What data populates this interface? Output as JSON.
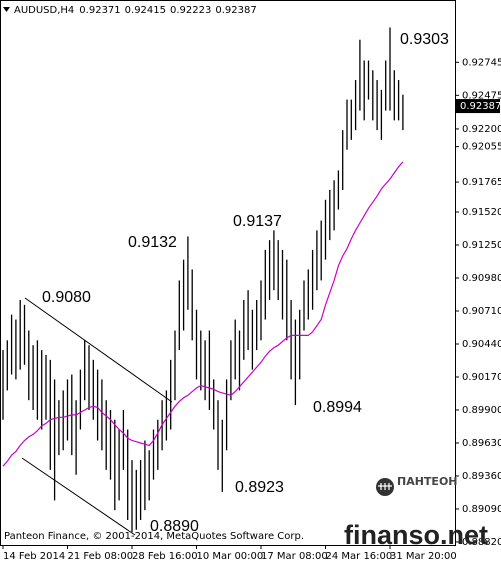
{
  "chart_data": {
    "type": "hilo",
    "title": "AUDUSD,H4",
    "header_prices": [
      0.92371,
      0.92415,
      0.92223,
      0.92387
    ],
    "categories": [
      "14 Feb 2014",
      null,
      null,
      null,
      null,
      null,
      null,
      null,
      null,
      null,
      null,
      null,
      null,
      null,
      null,
      "21 Feb 08:00",
      null,
      null,
      null,
      null,
      null,
      null,
      null,
      null,
      null,
      null,
      null,
      null,
      null,
      null,
      "28 Feb 16:00",
      null,
      null,
      null,
      null,
      null,
      null,
      null,
      null,
      null,
      null,
      null,
      null,
      null,
      null,
      "10 Mar 00:00",
      null,
      null,
      null,
      null,
      null,
      null,
      null,
      null,
      null,
      null,
      null,
      null,
      null,
      null,
      "17 Mar 08:00",
      null,
      null,
      null,
      null,
      null,
      null,
      null,
      null,
      null,
      null,
      null,
      null,
      null,
      null,
      "24 Mar 16:00",
      null,
      null,
      null,
      null,
      null,
      null,
      null,
      null,
      null,
      null,
      null,
      null,
      null,
      null,
      "31 Mar 20:00",
      null,
      null,
      null
    ],
    "high": [
      0.9039,
      0.9047,
      0.9068,
      0.9064,
      0.908,
      0.9076,
      0.9055,
      0.9043,
      0.9047,
      0.9039,
      0.9035,
      0.9031,
      0.9015,
      0.8998,
      0.9006,
      0.9015,
      0.9019,
      0.8998,
      0.9023,
      0.9047,
      0.9043,
      0.9031,
      0.9023,
      0.9015,
      0.8998,
      0.899,
      0.8982,
      0.8974,
      0.899,
      0.8974,
      0.8949,
      0.8941,
      0.8949,
      0.8965,
      0.8957,
      0.8974,
      0.8982,
      0.8998,
      0.9006,
      0.9031,
      0.9055,
      0.9096,
      0.9113,
      0.9132,
      0.9105,
      0.9072,
      0.9055,
      0.9047,
      0.9055,
      0.9015,
      0.8998,
      0.8982,
      0.9015,
      0.9047,
      0.9064,
      0.9055,
      0.908,
      0.9088,
      0.9072,
      0.908,
      0.9096,
      0.9121,
      0.9129,
      0.9137,
      0.9129,
      0.9121,
      0.9113,
      0.908,
      0.9064,
      0.9072,
      0.9096,
      0.9105,
      0.9121,
      0.9137,
      0.9145,
      0.9162,
      0.917,
      0.9178,
      0.9186,
      0.9219,
      0.9244,
      0.9244,
      0.926,
      0.9293,
      0.9276,
      0.9276,
      0.9268,
      0.926,
      0.9252,
      0.9276,
      0.9303,
      0.9268,
      0.926,
      0.9248
    ],
    "low": [
      0.8982,
      0.9006,
      0.9019,
      0.9015,
      0.9023,
      0.9027,
      0.8998,
      0.899,
      0.8982,
      0.8974,
      0.8982,
      0.8941,
      0.8916,
      0.8953,
      0.8957,
      0.8965,
      0.8953,
      0.8937,
      0.8974,
      0.8998,
      0.899,
      0.8982,
      0.8965,
      0.8957,
      0.8941,
      0.8933,
      0.8908,
      0.8916,
      0.8941,
      0.89,
      0.889,
      0.8892,
      0.89,
      0.8908,
      0.8916,
      0.8933,
      0.8941,
      0.8957,
      0.8965,
      0.8974,
      0.8998,
      0.9039,
      0.9055,
      0.9072,
      0.9047,
      0.9015,
      0.9006,
      0.8998,
      0.899,
      0.8974,
      0.8941,
      0.8923,
      0.8957,
      0.8998,
      0.9015,
      0.9006,
      0.9031,
      0.9039,
      0.9023,
      0.9039,
      0.9047,
      0.9064,
      0.908,
      0.9088,
      0.908,
      0.9064,
      0.9047,
      0.9015,
      0.8994,
      0.9015,
      0.9055,
      0.9064,
      0.9072,
      0.9088,
      0.9096,
      0.9113,
      0.9129,
      0.9137,
      0.9154,
      0.917,
      0.9203,
      0.9211,
      0.9219,
      0.9235,
      0.9227,
      0.9244,
      0.9227,
      0.9219,
      0.9211,
      0.9235,
      0.9235,
      0.9227,
      0.9227,
      0.9219
    ],
    "bar_color": "#000000",
    "ma": {
      "color": "#cc00cc",
      "values": [
        0.8944,
        0.8948,
        0.8953,
        0.8956,
        0.8961,
        0.8965,
        0.8968,
        0.897,
        0.8973,
        0.8977,
        0.8979,
        0.8982,
        0.8983,
        0.8984,
        0.8984,
        0.8985,
        0.8986,
        0.8986,
        0.8988,
        0.899,
        0.8992,
        0.8993,
        0.8992,
        0.8988,
        0.8985,
        0.8982,
        0.8978,
        0.8974,
        0.8971,
        0.8967,
        0.8965,
        0.8964,
        0.8963,
        0.8962,
        0.8961,
        0.8965,
        0.8971,
        0.8978,
        0.8983,
        0.8988,
        0.8993,
        0.8997,
        0.9,
        0.9002,
        0.9005,
        0.9008,
        0.901,
        0.9009,
        0.9008,
        0.9007,
        0.9005,
        0.9004,
        0.9003,
        0.9002,
        0.9005,
        0.9009,
        0.9013,
        0.9017,
        0.9021,
        0.9025,
        0.9029,
        0.9034,
        0.9038,
        0.9041,
        0.9043,
        0.9046,
        0.9049,
        0.9051,
        0.9051,
        0.9051,
        0.9051,
        0.9051,
        0.9054,
        0.9059,
        0.9064,
        0.9076,
        0.9086,
        0.9096,
        0.9108,
        0.9116,
        0.9122,
        0.913,
        0.9137,
        0.9143,
        0.9149,
        0.9155,
        0.916,
        0.9165,
        0.9171,
        0.9175,
        0.9179,
        0.9184,
        0.9189,
        0.9193
      ]
    },
    "ylim": [
      0.88795,
      0.93255
    ],
    "yticks": [
      0.92745,
      0.92475,
      {
        "value": 0.922,
        "label": "0.92200"
      },
      0.92055,
      0.91765,
      {
        "value": 0.9152,
        "label": "0.91520"
      },
      {
        "value": 0.9125,
        "label": "0.91250"
      },
      {
        "value": 0.9098,
        "label": "0.90980"
      },
      {
        "value": 0.9071,
        "label": "0.90710"
      },
      {
        "value": 0.9044,
        "label": "0.90440"
      },
      {
        "value": 0.9017,
        "label": "0.90170"
      },
      {
        "value": 0.899,
        "label": "0.89900"
      },
      {
        "value": 0.8963,
        "label": "0.89630"
      },
      {
        "value": 0.8936,
        "label": "0.89360"
      },
      {
        "value": 0.8909,
        "label": "0.89090"
      },
      {
        "value": 0.8882,
        "label": "0.88820"
      }
    ],
    "grid": false,
    "last_price": 0.92387,
    "annotations": [
      "0.9080",
      "0.9132",
      "0.9137",
      "0.9303",
      "0.8890",
      "0.8923",
      "0.8994"
    ],
    "footer": "Panteon Finance, © 2001-2014, MetaQuotes Software Corp."
  },
  "logo": "ПАНТЕОН",
  "watermark": "finanso.net"
}
